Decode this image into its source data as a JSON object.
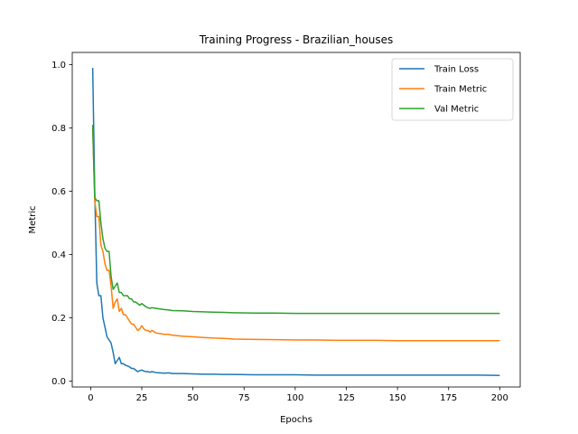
{
  "chart_data": {
    "type": "line",
    "title": "Training Progress - Brazilian_houses",
    "xlabel": "Epochs",
    "ylabel": "Metric",
    "xlim": [
      -9,
      210
    ],
    "ylim": [
      -0.0185,
      1.0385
    ],
    "xticks": [
      0,
      25,
      50,
      75,
      100,
      125,
      150,
      175,
      200
    ],
    "xtick_labels": [
      "0",
      "25",
      "50",
      "75",
      "100",
      "125",
      "150",
      "175",
      "200"
    ],
    "yticks": [
      0.0,
      0.2,
      0.4,
      0.6,
      0.8,
      1.0
    ],
    "ytick_labels": [
      "0.0",
      "0.2",
      "0.4",
      "0.6",
      "0.8",
      "1.0"
    ],
    "grid": false,
    "legend_position": "top-right",
    "series": [
      {
        "name": "Train Loss",
        "color": "#1f77b4",
        "x": [
          1,
          2,
          3,
          4,
          5,
          6,
          7,
          8,
          9,
          10,
          11,
          12,
          13,
          14,
          15,
          16,
          17,
          18,
          19,
          20,
          21,
          22,
          23,
          24,
          25,
          26,
          27,
          28,
          29,
          30,
          32,
          34,
          36,
          38,
          40,
          45,
          50,
          55,
          60,
          65,
          70,
          80,
          90,
          100,
          110,
          120,
          130,
          140,
          150,
          160,
          170,
          180,
          190,
          200
        ],
        "values": [
          0.99,
          0.6,
          0.31,
          0.27,
          0.27,
          0.2,
          0.17,
          0.14,
          0.13,
          0.12,
          0.09,
          0.055,
          0.065,
          0.075,
          0.055,
          0.055,
          0.05,
          0.048,
          0.045,
          0.04,
          0.04,
          0.035,
          0.03,
          0.033,
          0.035,
          0.032,
          0.03,
          0.03,
          0.028,
          0.03,
          0.027,
          0.026,
          0.025,
          0.026,
          0.024,
          0.024,
          0.023,
          0.022,
          0.022,
          0.021,
          0.021,
          0.02,
          0.02,
          0.02,
          0.019,
          0.019,
          0.019,
          0.019,
          0.019,
          0.019,
          0.019,
          0.019,
          0.019,
          0.018
        ]
      },
      {
        "name": "Train Metric",
        "color": "#ff7f0e",
        "x": [
          1,
          2,
          3,
          4,
          5,
          6,
          7,
          8,
          9,
          10,
          11,
          12,
          13,
          14,
          15,
          16,
          17,
          18,
          19,
          20,
          21,
          22,
          23,
          24,
          25,
          26,
          27,
          28,
          29,
          30,
          32,
          34,
          36,
          38,
          40,
          45,
          50,
          55,
          60,
          65,
          70,
          80,
          90,
          100,
          110,
          120,
          130,
          140,
          150,
          160,
          170,
          180,
          190,
          200
        ],
        "values": [
          0.8,
          0.57,
          0.52,
          0.52,
          0.43,
          0.41,
          0.37,
          0.35,
          0.35,
          0.3,
          0.23,
          0.25,
          0.26,
          0.22,
          0.23,
          0.21,
          0.21,
          0.2,
          0.19,
          0.18,
          0.18,
          0.17,
          0.16,
          0.165,
          0.175,
          0.165,
          0.16,
          0.16,
          0.155,
          0.16,
          0.152,
          0.15,
          0.148,
          0.148,
          0.145,
          0.142,
          0.14,
          0.138,
          0.136,
          0.135,
          0.133,
          0.132,
          0.131,
          0.13,
          0.13,
          0.129,
          0.129,
          0.129,
          0.128,
          0.128,
          0.128,
          0.128,
          0.128,
          0.128
        ]
      },
      {
        "name": "Val Metric",
        "color": "#2ca02c",
        "x": [
          1,
          2,
          3,
          4,
          5,
          6,
          7,
          8,
          9,
          10,
          11,
          12,
          13,
          14,
          15,
          16,
          17,
          18,
          19,
          20,
          21,
          22,
          23,
          24,
          25,
          26,
          27,
          28,
          29,
          30,
          32,
          34,
          36,
          38,
          40,
          45,
          50,
          55,
          60,
          65,
          70,
          80,
          90,
          100,
          110,
          120,
          130,
          140,
          150,
          160,
          170,
          180,
          190,
          200
        ],
        "values": [
          0.81,
          0.58,
          0.57,
          0.57,
          0.5,
          0.45,
          0.42,
          0.41,
          0.41,
          0.33,
          0.29,
          0.3,
          0.31,
          0.28,
          0.28,
          0.27,
          0.27,
          0.27,
          0.26,
          0.26,
          0.25,
          0.25,
          0.245,
          0.24,
          0.245,
          0.24,
          0.235,
          0.232,
          0.23,
          0.232,
          0.23,
          0.228,
          0.226,
          0.225,
          0.223,
          0.222,
          0.22,
          0.219,
          0.218,
          0.217,
          0.216,
          0.215,
          0.215,
          0.214,
          0.214,
          0.214,
          0.214,
          0.214,
          0.214,
          0.214,
          0.214,
          0.214,
          0.214,
          0.214
        ]
      }
    ]
  }
}
